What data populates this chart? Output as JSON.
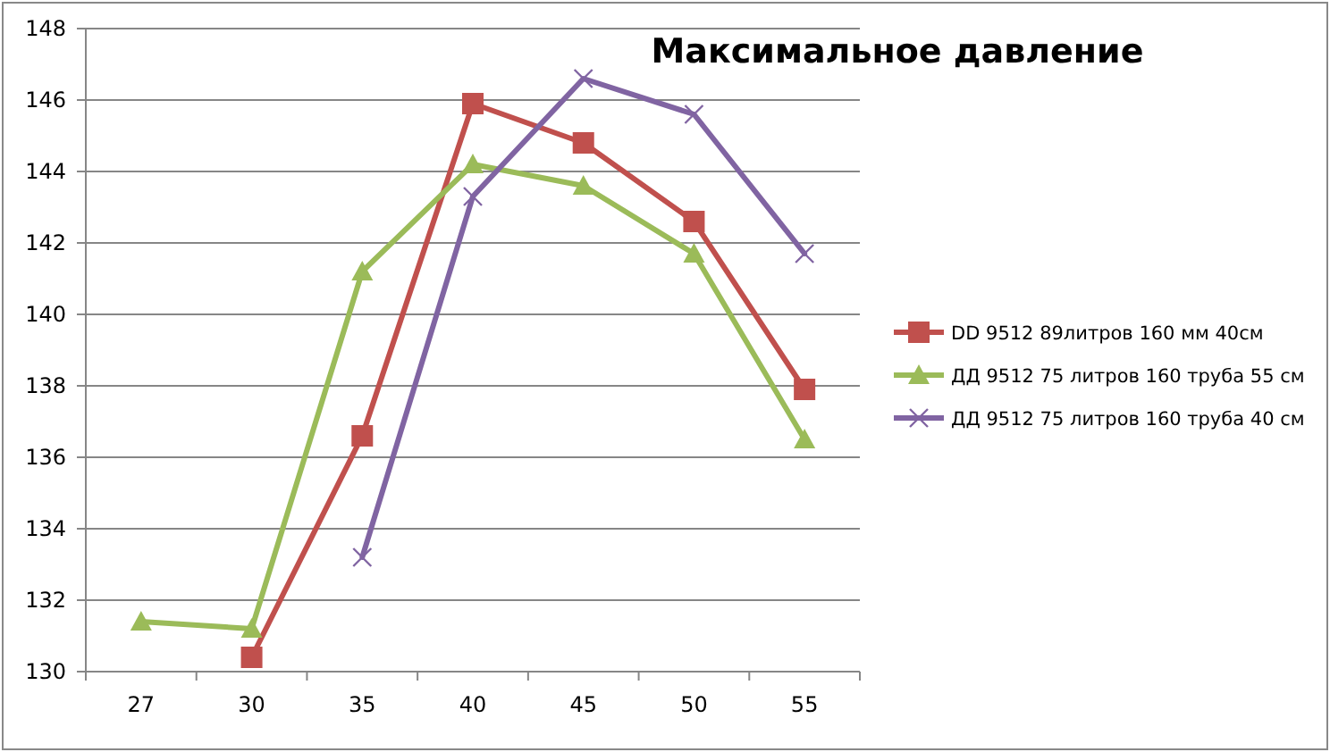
{
  "chart_data": {
    "type": "line",
    "title": "Максимальное давление",
    "categories": [
      "27",
      "30",
      "35",
      "40",
      "45",
      "50",
      "55"
    ],
    "series": [
      {
        "name": "DD 9512  89литров 160 мм 40см",
        "color": "#c0504d",
        "marker": "square",
        "values": [
          null,
          130.4,
          136.6,
          145.9,
          144.8,
          142.6,
          137.9
        ]
      },
      {
        "name": "ДД 9512 75 литров 160 труба 55 см",
        "color": "#9bbb59",
        "marker": "triangle",
        "values": [
          131.4,
          131.2,
          141.2,
          144.2,
          143.6,
          141.7,
          136.5
        ]
      },
      {
        "name": "ДД 9512 75 литров 160 труба 40 см",
        "color": "#8064a2",
        "marker": "cross",
        "values": [
          null,
          null,
          133.2,
          143.3,
          146.6,
          145.6,
          141.7
        ]
      }
    ],
    "ylim": [
      130,
      148
    ],
    "yticks": [
      130,
      132,
      134,
      136,
      138,
      140,
      142,
      144,
      146,
      148
    ],
    "grid": "y",
    "legend": "right"
  }
}
